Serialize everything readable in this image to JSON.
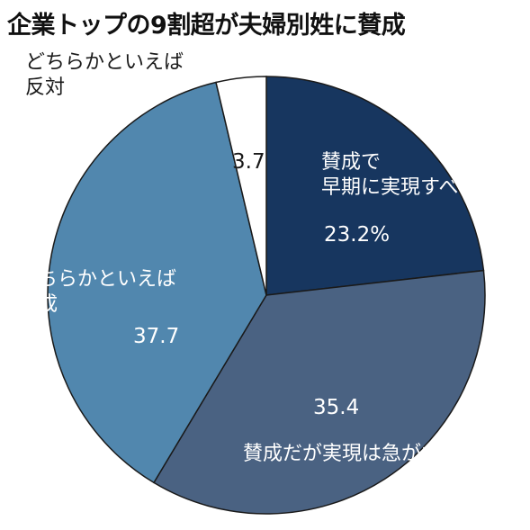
{
  "title": "企業トップの9割超が夫婦別姓に賛成",
  "chart_data": {
    "type": "pie",
    "title": "企業トップの9割超が夫婦別姓に賛成",
    "slices": [
      {
        "label_lines": [
          "賛成で",
          "早期に実現すべき"
        ],
        "value": 23.2,
        "value_text": "23.2%",
        "color": "#17365f"
      },
      {
        "label_lines": [
          "賛成だが実現は急がない"
        ],
        "value": 35.4,
        "value_text": "35.4",
        "color": "#4a6282"
      },
      {
        "label_lines": [
          "どちらかといえば",
          "賛成"
        ],
        "value": 37.7,
        "value_text": "37.7",
        "color": "#5187ae"
      },
      {
        "label_lines": [
          "どちらかといえば",
          "反対"
        ],
        "value": 3.7,
        "value_text": "3.7",
        "color": "#ffffff"
      }
    ]
  }
}
